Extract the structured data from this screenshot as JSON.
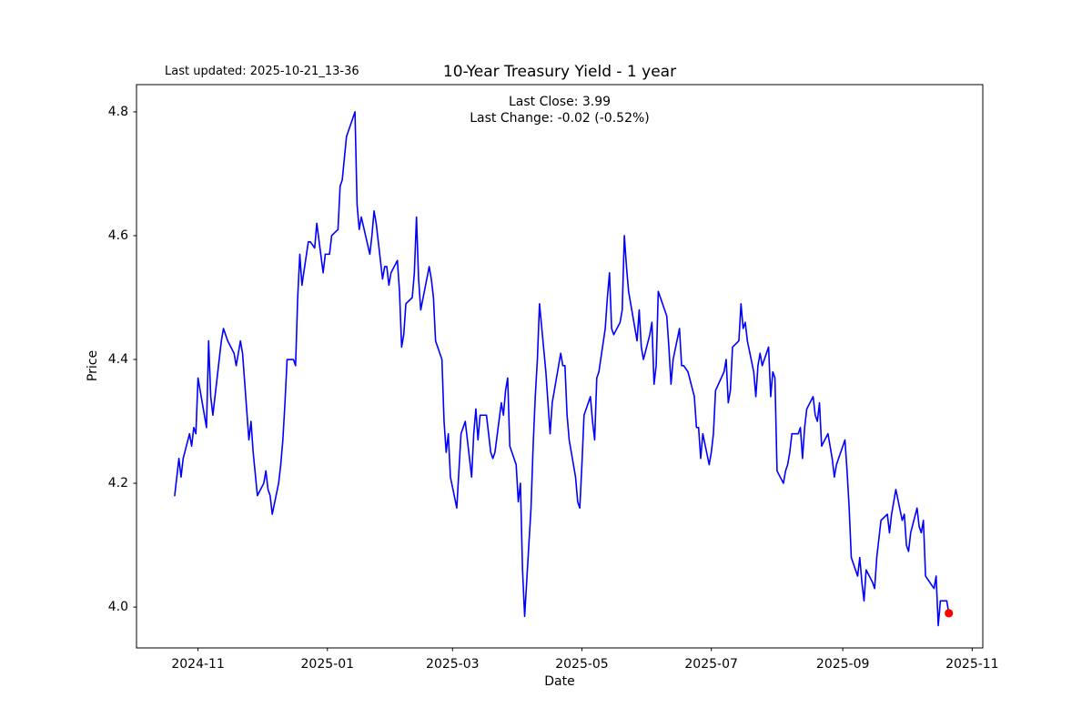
{
  "figure": {
    "last_updated": "Last updated: 2025-10-21_13-36",
    "title": "10-Year Treasury Yield - 1 year",
    "subtitle_line1": "Last Close: 3.99",
    "subtitle_line2": "Last Change: -0.02 (-0.52%)"
  },
  "chart_data": {
    "type": "line",
    "title": "10-Year Treasury Yield - 1 year",
    "xlabel": "Date",
    "ylabel": "Price",
    "last_close": 3.99,
    "last_change": -0.02,
    "last_change_pct": "-0.52%",
    "line_color": "#0000ff",
    "last_point_color": "#ff0000",
    "grid": false,
    "legend": "none",
    "ylim": [
      3.934,
      4.844
    ],
    "xlim_dates": [
      "2024-10-03",
      "2025-11-06"
    ],
    "y_ticks": [
      4.0,
      4.2,
      4.4,
      4.6,
      4.8
    ],
    "y_tick_labels": [
      "4.0",
      "4.2",
      "4.4",
      "4.6",
      "4.8"
    ],
    "x_ticks": [
      {
        "date": "2024-11-01",
        "label": "2024-11"
      },
      {
        "date": "2025-01-01",
        "label": "2025-01"
      },
      {
        "date": "2025-03-01",
        "label": "2025-03"
      },
      {
        "date": "2025-05-01",
        "label": "2025-05"
      },
      {
        "date": "2025-07-01",
        "label": "2025-07"
      },
      {
        "date": "2025-09-01",
        "label": "2025-09"
      },
      {
        "date": "2025-11-01",
        "label": "2025-11"
      }
    ],
    "series": [
      {
        "name": "10-Year Treasury Yield",
        "points": [
          [
            "2024-10-21",
            4.18
          ],
          [
            "2024-10-22",
            4.21
          ],
          [
            "2024-10-23",
            4.24
          ],
          [
            "2024-10-24",
            4.21
          ],
          [
            "2024-10-25",
            4.24
          ],
          [
            "2024-10-28",
            4.28
          ],
          [
            "2024-10-29",
            4.26
          ],
          [
            "2024-10-30",
            4.29
          ],
          [
            "2024-10-31",
            4.28
          ],
          [
            "2024-11-01",
            4.37
          ],
          [
            "2024-11-04",
            4.31
          ],
          [
            "2024-11-05",
            4.29
          ],
          [
            "2024-11-06",
            4.43
          ],
          [
            "2024-11-07",
            4.34
          ],
          [
            "2024-11-08",
            4.31
          ],
          [
            "2024-11-12",
            4.43
          ],
          [
            "2024-11-13",
            4.45
          ],
          [
            "2024-11-14",
            4.44
          ],
          [
            "2024-11-15",
            4.43
          ],
          [
            "2024-11-18",
            4.41
          ],
          [
            "2024-11-19",
            4.39
          ],
          [
            "2024-11-20",
            4.41
          ],
          [
            "2024-11-21",
            4.43
          ],
          [
            "2024-11-22",
            4.41
          ],
          [
            "2024-11-25",
            4.27
          ],
          [
            "2024-11-26",
            4.3
          ],
          [
            "2024-11-27",
            4.25
          ],
          [
            "2024-11-29",
            4.18
          ],
          [
            "2024-12-02",
            4.2
          ],
          [
            "2024-12-03",
            4.22
          ],
          [
            "2024-12-04",
            4.19
          ],
          [
            "2024-12-05",
            4.18
          ],
          [
            "2024-12-06",
            4.15
          ],
          [
            "2024-12-09",
            4.2
          ],
          [
            "2024-12-10",
            4.23
          ],
          [
            "2024-12-11",
            4.27
          ],
          [
            "2024-12-12",
            4.33
          ],
          [
            "2024-12-13",
            4.4
          ],
          [
            "2024-12-16",
            4.4
          ],
          [
            "2024-12-17",
            4.39
          ],
          [
            "2024-12-18",
            4.5
          ],
          [
            "2024-12-19",
            4.57
          ],
          [
            "2024-12-20",
            4.52
          ],
          [
            "2024-12-23",
            4.59
          ],
          [
            "2024-12-24",
            4.59
          ],
          [
            "2024-12-26",
            4.58
          ],
          [
            "2024-12-27",
            4.62
          ],
          [
            "2024-12-30",
            4.54
          ],
          [
            "2024-12-31",
            4.57
          ],
          [
            "2025-01-02",
            4.57
          ],
          [
            "2025-01-03",
            4.6
          ],
          [
            "2025-01-06",
            4.61
          ],
          [
            "2025-01-07",
            4.68
          ],
          [
            "2025-01-08",
            4.69
          ],
          [
            "2025-01-10",
            4.76
          ],
          [
            "2025-01-13",
            4.79
          ],
          [
            "2025-01-14",
            4.8
          ],
          [
            "2025-01-15",
            4.65
          ],
          [
            "2025-01-16",
            4.61
          ],
          [
            "2025-01-17",
            4.63
          ],
          [
            "2025-01-21",
            4.57
          ],
          [
            "2025-01-22",
            4.6
          ],
          [
            "2025-01-23",
            4.64
          ],
          [
            "2025-01-24",
            4.62
          ],
          [
            "2025-01-27",
            4.53
          ],
          [
            "2025-01-28",
            4.55
          ],
          [
            "2025-01-29",
            4.55
          ],
          [
            "2025-01-30",
            4.52
          ],
          [
            "2025-01-31",
            4.54
          ],
          [
            "2025-02-03",
            4.56
          ],
          [
            "2025-02-04",
            4.51
          ],
          [
            "2025-02-05",
            4.42
          ],
          [
            "2025-02-06",
            4.44
          ],
          [
            "2025-02-07",
            4.49
          ],
          [
            "2025-02-10",
            4.5
          ],
          [
            "2025-02-11",
            4.54
          ],
          [
            "2025-02-12",
            4.63
          ],
          [
            "2025-02-13",
            4.53
          ],
          [
            "2025-02-14",
            4.48
          ],
          [
            "2025-02-18",
            4.55
          ],
          [
            "2025-02-19",
            4.53
          ],
          [
            "2025-02-20",
            4.5
          ],
          [
            "2025-02-21",
            4.43
          ],
          [
            "2025-02-24",
            4.4
          ],
          [
            "2025-02-25",
            4.3
          ],
          [
            "2025-02-26",
            4.25
          ],
          [
            "2025-02-27",
            4.28
          ],
          [
            "2025-02-28",
            4.21
          ],
          [
            "2025-03-03",
            4.16
          ],
          [
            "2025-03-04",
            4.22
          ],
          [
            "2025-03-05",
            4.28
          ],
          [
            "2025-03-06",
            4.29
          ],
          [
            "2025-03-07",
            4.3
          ],
          [
            "2025-03-10",
            4.21
          ],
          [
            "2025-03-11",
            4.28
          ],
          [
            "2025-03-12",
            4.32
          ],
          [
            "2025-03-13",
            4.27
          ],
          [
            "2025-03-14",
            4.31
          ],
          [
            "2025-03-17",
            4.31
          ],
          [
            "2025-03-18",
            4.28
          ],
          [
            "2025-03-19",
            4.25
          ],
          [
            "2025-03-20",
            4.24
          ],
          [
            "2025-03-21",
            4.25
          ],
          [
            "2025-03-24",
            4.33
          ],
          [
            "2025-03-25",
            4.31
          ],
          [
            "2025-03-26",
            4.35
          ],
          [
            "2025-03-27",
            4.37
          ],
          [
            "2025-03-28",
            4.26
          ],
          [
            "2025-03-31",
            4.23
          ],
          [
            "2025-04-01",
            4.17
          ],
          [
            "2025-04-02",
            4.2
          ],
          [
            "2025-04-03",
            4.06
          ],
          [
            "2025-04-04",
            3.985
          ],
          [
            "2025-04-07",
            4.16
          ],
          [
            "2025-04-08",
            4.26
          ],
          [
            "2025-04-09",
            4.34
          ],
          [
            "2025-04-10",
            4.4
          ],
          [
            "2025-04-11",
            4.49
          ],
          [
            "2025-04-14",
            4.38
          ],
          [
            "2025-04-15",
            4.33
          ],
          [
            "2025-04-16",
            4.28
          ],
          [
            "2025-04-17",
            4.33
          ],
          [
            "2025-04-21",
            4.41
          ],
          [
            "2025-04-22",
            4.39
          ],
          [
            "2025-04-23",
            4.39
          ],
          [
            "2025-04-24",
            4.31
          ],
          [
            "2025-04-25",
            4.27
          ],
          [
            "2025-04-28",
            4.21
          ],
          [
            "2025-04-29",
            4.17
          ],
          [
            "2025-04-30",
            4.16
          ],
          [
            "2025-05-01",
            4.23
          ],
          [
            "2025-05-02",
            4.31
          ],
          [
            "2025-05-05",
            4.34
          ],
          [
            "2025-05-06",
            4.3
          ],
          [
            "2025-05-07",
            4.27
          ],
          [
            "2025-05-08",
            4.37
          ],
          [
            "2025-05-09",
            4.38
          ],
          [
            "2025-05-12",
            4.45
          ],
          [
            "2025-05-13",
            4.5
          ],
          [
            "2025-05-14",
            4.54
          ],
          [
            "2025-05-15",
            4.45
          ],
          [
            "2025-05-16",
            4.44
          ],
          [
            "2025-05-19",
            4.46
          ],
          [
            "2025-05-20",
            4.48
          ],
          [
            "2025-05-21",
            4.6
          ],
          [
            "2025-05-22",
            4.55
          ],
          [
            "2025-05-23",
            4.51
          ],
          [
            "2025-05-27",
            4.43
          ],
          [
            "2025-05-28",
            4.48
          ],
          [
            "2025-05-29",
            4.42
          ],
          [
            "2025-05-30",
            4.4
          ],
          [
            "2025-06-02",
            4.44
          ],
          [
            "2025-06-03",
            4.46
          ],
          [
            "2025-06-04",
            4.36
          ],
          [
            "2025-06-05",
            4.39
          ],
          [
            "2025-06-06",
            4.51
          ],
          [
            "2025-06-09",
            4.48
          ],
          [
            "2025-06-10",
            4.47
          ],
          [
            "2025-06-11",
            4.42
          ],
          [
            "2025-06-12",
            4.36
          ],
          [
            "2025-06-13",
            4.4
          ],
          [
            "2025-06-16",
            4.45
          ],
          [
            "2025-06-17",
            4.39
          ],
          [
            "2025-06-18",
            4.39
          ],
          [
            "2025-06-20",
            4.38
          ],
          [
            "2025-06-23",
            4.34
          ],
          [
            "2025-06-24",
            4.29
          ],
          [
            "2025-06-25",
            4.29
          ],
          [
            "2025-06-26",
            4.24
          ],
          [
            "2025-06-27",
            4.28
          ],
          [
            "2025-06-30",
            4.23
          ],
          [
            "2025-07-01",
            4.25
          ],
          [
            "2025-07-02",
            4.28
          ],
          [
            "2025-07-03",
            4.35
          ],
          [
            "2025-07-07",
            4.38
          ],
          [
            "2025-07-08",
            4.4
          ],
          [
            "2025-07-09",
            4.33
          ],
          [
            "2025-07-10",
            4.35
          ],
          [
            "2025-07-11",
            4.42
          ],
          [
            "2025-07-14",
            4.43
          ],
          [
            "2025-07-15",
            4.49
          ],
          [
            "2025-07-16",
            4.45
          ],
          [
            "2025-07-17",
            4.46
          ],
          [
            "2025-07-18",
            4.43
          ],
          [
            "2025-07-21",
            4.38
          ],
          [
            "2025-07-22",
            4.34
          ],
          [
            "2025-07-23",
            4.39
          ],
          [
            "2025-07-24",
            4.41
          ],
          [
            "2025-07-25",
            4.39
          ],
          [
            "2025-07-28",
            4.42
          ],
          [
            "2025-07-29",
            4.34
          ],
          [
            "2025-07-30",
            4.38
          ],
          [
            "2025-07-31",
            4.37
          ],
          [
            "2025-08-01",
            4.22
          ],
          [
            "2025-08-04",
            4.2
          ],
          [
            "2025-08-05",
            4.22
          ],
          [
            "2025-08-06",
            4.23
          ],
          [
            "2025-08-07",
            4.25
          ],
          [
            "2025-08-08",
            4.28
          ],
          [
            "2025-08-11",
            4.28
          ],
          [
            "2025-08-12",
            4.29
          ],
          [
            "2025-08-13",
            4.24
          ],
          [
            "2025-08-14",
            4.29
          ],
          [
            "2025-08-15",
            4.32
          ],
          [
            "2025-08-18",
            4.34
          ],
          [
            "2025-08-19",
            4.31
          ],
          [
            "2025-08-20",
            4.3
          ],
          [
            "2025-08-21",
            4.33
          ],
          [
            "2025-08-22",
            4.26
          ],
          [
            "2025-08-25",
            4.28
          ],
          [
            "2025-08-26",
            4.26
          ],
          [
            "2025-08-27",
            4.24
          ],
          [
            "2025-08-28",
            4.21
          ],
          [
            "2025-08-29",
            4.23
          ],
          [
            "2025-09-02",
            4.27
          ],
          [
            "2025-09-03",
            4.22
          ],
          [
            "2025-09-04",
            4.16
          ],
          [
            "2025-09-05",
            4.08
          ],
          [
            "2025-09-08",
            4.05
          ],
          [
            "2025-09-09",
            4.08
          ],
          [
            "2025-09-10",
            4.04
          ],
          [
            "2025-09-11",
            4.01
          ],
          [
            "2025-09-12",
            4.06
          ],
          [
            "2025-09-15",
            4.04
          ],
          [
            "2025-09-16",
            4.03
          ],
          [
            "2025-09-17",
            4.08
          ],
          [
            "2025-09-18",
            4.11
          ],
          [
            "2025-09-19",
            4.14
          ],
          [
            "2025-09-22",
            4.15
          ],
          [
            "2025-09-23",
            4.12
          ],
          [
            "2025-09-24",
            4.15
          ],
          [
            "2025-09-25",
            4.17
          ],
          [
            "2025-09-26",
            4.19
          ],
          [
            "2025-09-29",
            4.14
          ],
          [
            "2025-09-30",
            4.15
          ],
          [
            "2025-10-01",
            4.1
          ],
          [
            "2025-10-02",
            4.09
          ],
          [
            "2025-10-03",
            4.12
          ],
          [
            "2025-10-06",
            4.16
          ],
          [
            "2025-10-07",
            4.13
          ],
          [
            "2025-10-08",
            4.12
          ],
          [
            "2025-10-09",
            4.14
          ],
          [
            "2025-10-10",
            4.05
          ],
          [
            "2025-10-14",
            4.03
          ],
          [
            "2025-10-15",
            4.05
          ],
          [
            "2025-10-16",
            3.97
          ],
          [
            "2025-10-17",
            4.01
          ],
          [
            "2025-10-20",
            4.01
          ],
          [
            "2025-10-21",
            3.99
          ]
        ]
      }
    ]
  }
}
